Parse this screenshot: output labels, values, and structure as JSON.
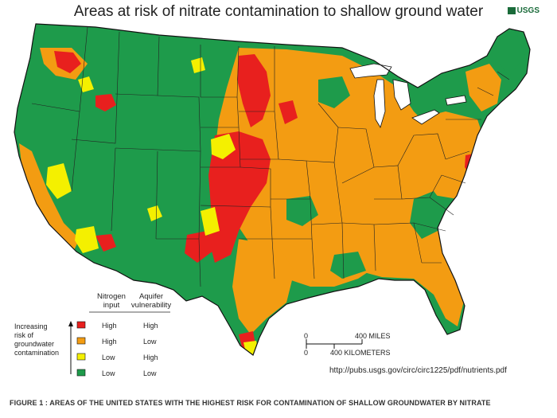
{
  "title": "Areas at risk of nitrate contamination to shallow ground water",
  "logo_text": "USGS",
  "colors": {
    "high_high": "#e8201e",
    "high_low": "#f39c12",
    "low_high": "#f4f000",
    "low_low": "#1e9b4b",
    "water": "#ffffff",
    "outline": "#111111"
  },
  "legend": {
    "side_label": "Increasing risk of groundwater contamination",
    "side_lines": [
      "Increasing",
      "risk of",
      "groundwater",
      "contamination"
    ],
    "col1_header": [
      "Nitrogen",
      "input"
    ],
    "col2_header": [
      "Aquifer",
      "vulnerability"
    ],
    "rows": [
      {
        "nitrogen": "High",
        "aquifer": "High",
        "color": "#e8201e"
      },
      {
        "nitrogen": "High",
        "aquifer": "Low",
        "color": "#f39c12"
      },
      {
        "nitrogen": "Low",
        "aquifer": "High",
        "color": "#f4f000"
      },
      {
        "nitrogen": "Low",
        "aquifer": "Low",
        "color": "#1e9b4b"
      }
    ]
  },
  "scale": {
    "zero_top": "0",
    "zero_bottom": "0",
    "miles": "400 MILES",
    "km": "400 KILOMETERS"
  },
  "source_url": "http://pubs.usgs.gov/circ/circ1225/pdf/nutrients.pdf",
  "caption": "FIGURE 1 : AREAS OF THE UNITED STATES WITH THE HIGHEST RISK FOR CONTAMINATION OF SHALLOW GROUNDWATER BY NITRATE"
}
